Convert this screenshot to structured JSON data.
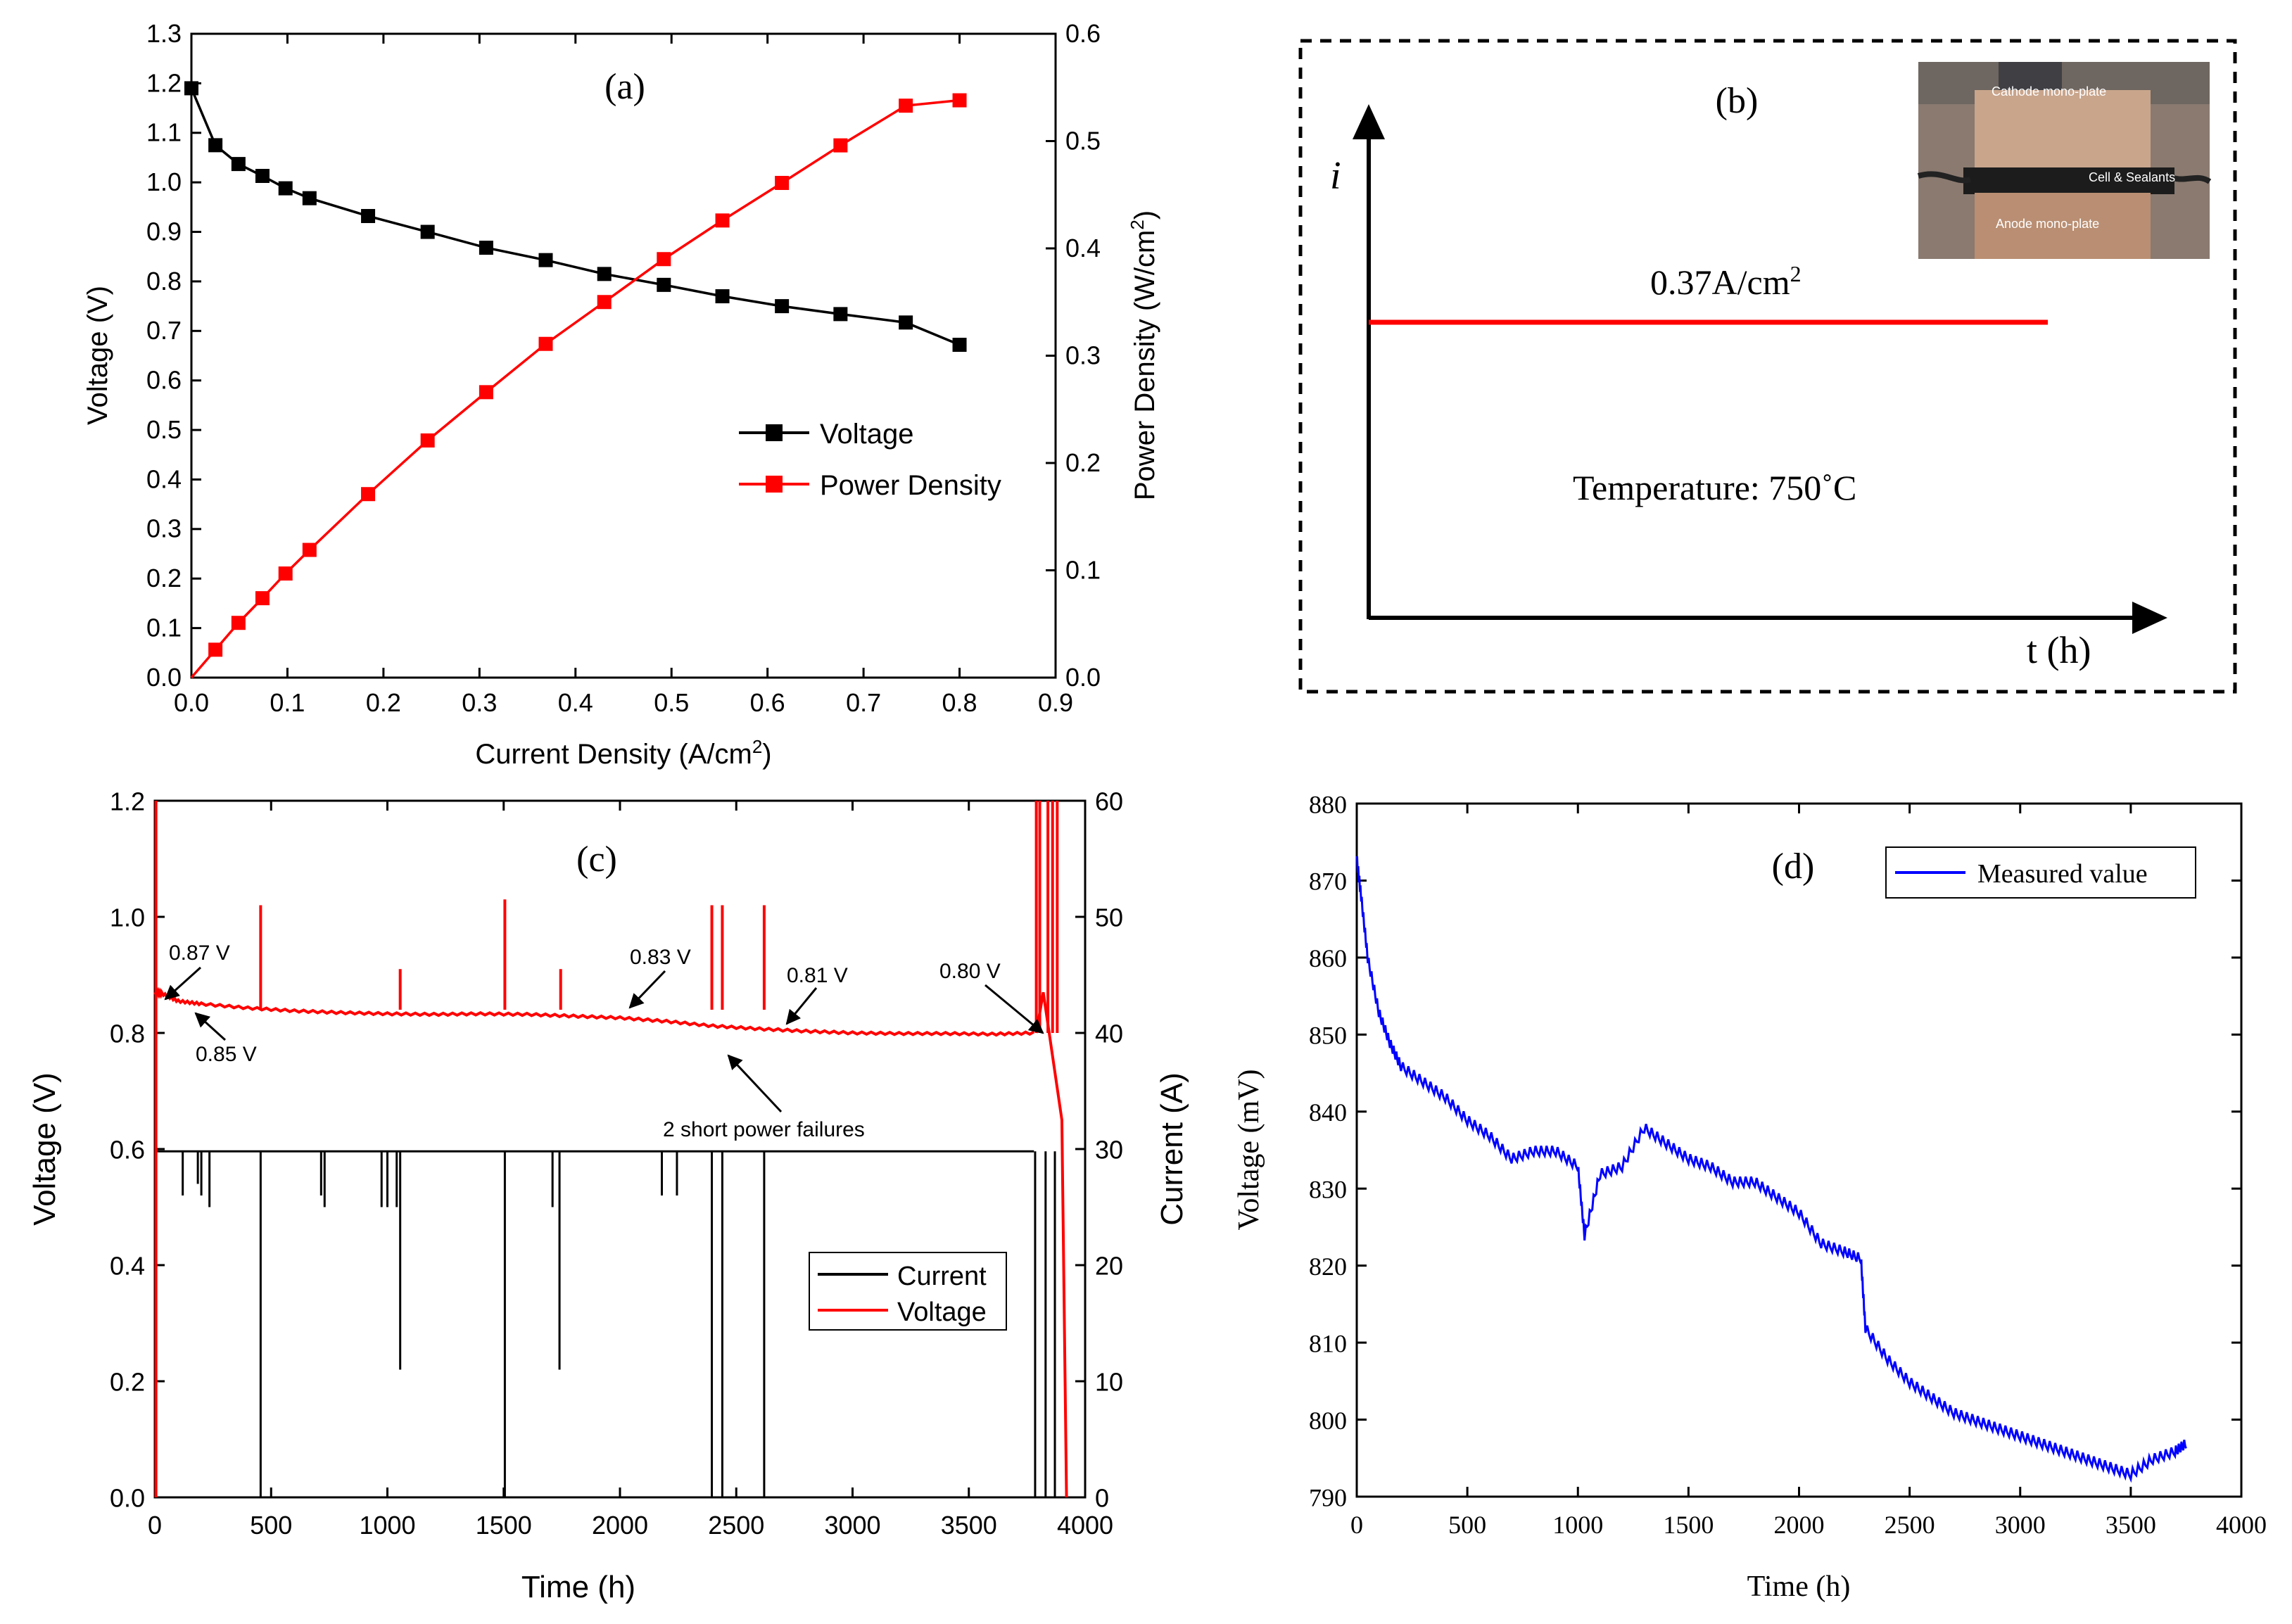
{
  "chart_data": [
    {
      "panel": "(a)",
      "type": "line",
      "xlabel": "Current Density (A/cm²)",
      "ylabel": "Voltage (V)",
      "y2label": "Power Density (W/cm²)",
      "xlim": [
        0.0,
        0.9
      ],
      "ylim": [
        0.0,
        1.3
      ],
      "y2lim": [
        0.0,
        0.6
      ],
      "xticks": [
        "0.0",
        "0.1",
        "0.2",
        "0.3",
        "0.4",
        "0.5",
        "0.6",
        "0.7",
        "0.8",
        "0.9"
      ],
      "yticks": [
        "0.0",
        "0.1",
        "0.2",
        "0.3",
        "0.4",
        "0.5",
        "0.6",
        "0.7",
        "0.8",
        "0.9",
        "1.0",
        "1.1",
        "1.2",
        "1.3"
      ],
      "y2ticks": [
        "0.0",
        "0.1",
        "0.2",
        "0.3",
        "0.4",
        "0.5",
        "0.6"
      ],
      "legend_position": "center-right",
      "series": [
        {
          "name": "Voltage",
          "axis": "left",
          "color": "#000000",
          "marker": "square",
          "x": [
            0.0,
            0.025,
            0.049,
            0.074,
            0.098,
            0.123,
            0.184,
            0.246,
            0.307,
            0.369,
            0.43,
            0.492,
            0.553,
            0.615,
            0.676,
            0.744,
            0.8
          ],
          "y": [
            1.19,
            1.075,
            1.037,
            1.013,
            0.988,
            0.968,
            0.932,
            0.9,
            0.868,
            0.843,
            0.815,
            0.793,
            0.77,
            0.75,
            0.734,
            0.717,
            0.672
          ]
        },
        {
          "name": "Power Density",
          "axis": "right",
          "color": "#ff0000",
          "marker": "square",
          "x": [
            0.0,
            0.025,
            0.049,
            0.074,
            0.098,
            0.123,
            0.184,
            0.246,
            0.307,
            0.369,
            0.43,
            0.492,
            0.553,
            0.615,
            0.676,
            0.744,
            0.8
          ],
          "y": [
            0.0,
            0.026,
            0.051,
            0.074,
            0.097,
            0.119,
            0.171,
            0.221,
            0.266,
            0.311,
            0.35,
            0.39,
            0.426,
            0.461,
            0.496,
            0.533,
            0.538
          ]
        }
      ]
    },
    {
      "panel": "(b)",
      "type": "schematic",
      "y_axis_label": "i",
      "x_axis_label": "t (h)",
      "current_label": "0.37A/cm",
      "current_label_sup": "2",
      "temperature_label": "Temperature: 750",
      "temperature_unit": "˚C",
      "photo_labels": [
        "Cathode mono-plate",
        "Cell & Sealants",
        "Anode mono-plate"
      ]
    },
    {
      "panel": "(c)",
      "type": "line",
      "xlabel": "Time (h)",
      "ylabel": "Voltage (V)",
      "y2label": "Current (A)",
      "xlim": [
        0,
        4000
      ],
      "ylim": [
        0.0,
        1.2
      ],
      "y2lim": [
        0,
        60
      ],
      "xticks": [
        "0",
        "500",
        "1000",
        "1500",
        "2000",
        "2500",
        "3000",
        "3500",
        "4000"
      ],
      "yticks": [
        "0.0",
        "0.2",
        "0.4",
        "0.6",
        "0.8",
        "1.0",
        "1.2"
      ],
      "y2ticks": [
        "0",
        "10",
        "20",
        "30",
        "40",
        "50",
        "60"
      ],
      "legend_position": "center-right",
      "series": [
        {
          "name": "Current",
          "axis": "right",
          "color": "#000000",
          "baseline": 29.8,
          "x": [
            0,
            3780
          ],
          "y": [
            29.8,
            29.8
          ],
          "dips": [
            {
              "x": 120,
              "y": 26
            },
            {
              "x": 185,
              "y": 27
            },
            {
              "x": 200,
              "y": 26
            },
            {
              "x": 235,
              "y": 25
            },
            {
              "x": 455,
              "y": 0
            },
            {
              "x": 715,
              "y": 26
            },
            {
              "x": 730,
              "y": 25
            },
            {
              "x": 975,
              "y": 25
            },
            {
              "x": 1000,
              "y": 25
            },
            {
              "x": 1040,
              "y": 25
            },
            {
              "x": 1055,
              "y": 11
            },
            {
              "x": 1505,
              "y": 0
            },
            {
              "x": 1710,
              "y": 25
            },
            {
              "x": 1740,
              "y": 11
            },
            {
              "x": 2180,
              "y": 26
            },
            {
              "x": 2245,
              "y": 26
            },
            {
              "x": 2395,
              "y": 0
            },
            {
              "x": 2440,
              "y": 0
            },
            {
              "x": 2620,
              "y": 0
            }
          ]
        },
        {
          "name": "Voltage",
          "axis": "left",
          "color": "#ff0000",
          "x": [
            0,
            30,
            100,
            200,
            400,
            600,
            800,
            1000,
            1200,
            1400,
            1600,
            1800,
            2000,
            2200,
            2400,
            2600,
            2800,
            3000,
            3200,
            3400,
            3600,
            3780
          ],
          "y": [
            0.87,
            0.868,
            0.855,
            0.85,
            0.843,
            0.838,
            0.835,
            0.833,
            0.832,
            0.833,
            0.832,
            0.829,
            0.826,
            0.82,
            0.812,
            0.807,
            0.803,
            0.8,
            0.799,
            0.799,
            0.798,
            0.8
          ],
          "spikes": [
            {
              "x": 455,
              "y": 1.02
            },
            {
              "x": 1055,
              "y": 0.91
            },
            {
              "x": 1505,
              "y": 1.03
            },
            {
              "x": 1745,
              "y": 0.91
            },
            {
              "x": 2395,
              "y": 1.02
            },
            {
              "x": 2440,
              "y": 1.02
            },
            {
              "x": 2620,
              "y": 1.02
            }
          ]
        }
      ],
      "annotations": [
        "0.87 V",
        "0.85 V",
        "0.83 V",
        "0.81 V",
        "0.80 V",
        "2 short power failures"
      ]
    },
    {
      "panel": "(d)",
      "type": "line",
      "xlabel": "Time (h)",
      "ylabel": "Voltage (mV)",
      "xlim": [
        0,
        4000
      ],
      "ylim": [
        790,
        880
      ],
      "xticks": [
        "0",
        "500",
        "1000",
        "1500",
        "2000",
        "2500",
        "3000",
        "3500",
        "4000"
      ],
      "yticks": [
        "790",
        "800",
        "810",
        "820",
        "830",
        "840",
        "850",
        "860",
        "870",
        "880"
      ],
      "legend_position": "top-right",
      "series": [
        {
          "name": "Measured value",
          "color": "#0000ff",
          "x": [
            0,
            20,
            50,
            100,
            150,
            200,
            300,
            400,
            500,
            600,
            700,
            800,
            900,
            1000,
            1030,
            1100,
            1200,
            1300,
            1400,
            1500,
            1600,
            1700,
            1800,
            1900,
            2000,
            2100,
            2200,
            2280,
            2300,
            2400,
            2500,
            2600,
            2700,
            2800,
            2900,
            3000,
            3100,
            3200,
            3300,
            3400,
            3500,
            3600,
            3700,
            3750
          ],
          "y": [
            873,
            868,
            860,
            853,
            849,
            846,
            844,
            842,
            839,
            837,
            834,
            835,
            835,
            833,
            824,
            832,
            833,
            838,
            836,
            834,
            833,
            831,
            831,
            829,
            827,
            823,
            822,
            821,
            812,
            808,
            805,
            803,
            801,
            800,
            799,
            798,
            797,
            796,
            795,
            794,
            793,
            795,
            796,
            797
          ]
        }
      ]
    }
  ]
}
